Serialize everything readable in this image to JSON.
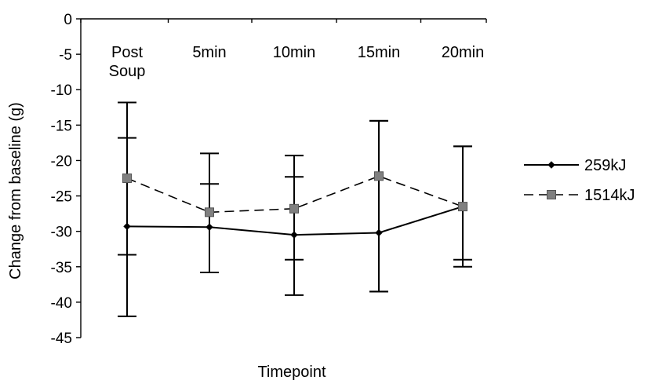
{
  "chart_data": {
    "type": "line",
    "title": "",
    "xlabel": "Timepoint",
    "ylabel": "Change from baseline (g)",
    "ylim": [
      -45,
      0
    ],
    "yticks": [
      0,
      -5,
      -10,
      -15,
      -20,
      -25,
      -30,
      -35,
      -40,
      -45
    ],
    "categories": [
      [
        "Post",
        "Soup"
      ],
      [
        "5min"
      ],
      [
        "10min"
      ],
      [
        "15min"
      ],
      [
        "20min"
      ]
    ],
    "grid": false,
    "legend_position": "right",
    "series": [
      {
        "name": "259kJ",
        "style": "solid",
        "marker": "diamond",
        "color": "#000000",
        "values": [
          -29.3,
          -29.4,
          -30.5,
          -30.2,
          -26.5
        ],
        "error_low": [
          -42.0,
          -35.8,
          -39.0,
          -38.5,
          -35.0
        ],
        "error_high": [
          -16.8,
          -23.3,
          -22.3,
          -14.4,
          -18.0
        ]
      },
      {
        "name": "1514kJ",
        "style": "dashed",
        "marker": "square",
        "color": "#808080",
        "values": [
          -22.5,
          -27.3,
          -26.8,
          -22.2,
          -26.5
        ],
        "error_low": [
          -33.3,
          -35.8,
          -34.0,
          -38.5,
          -34.0
        ],
        "error_high": [
          -11.8,
          -19.0,
          -19.3,
          -14.4,
          -18.0
        ]
      }
    ]
  }
}
